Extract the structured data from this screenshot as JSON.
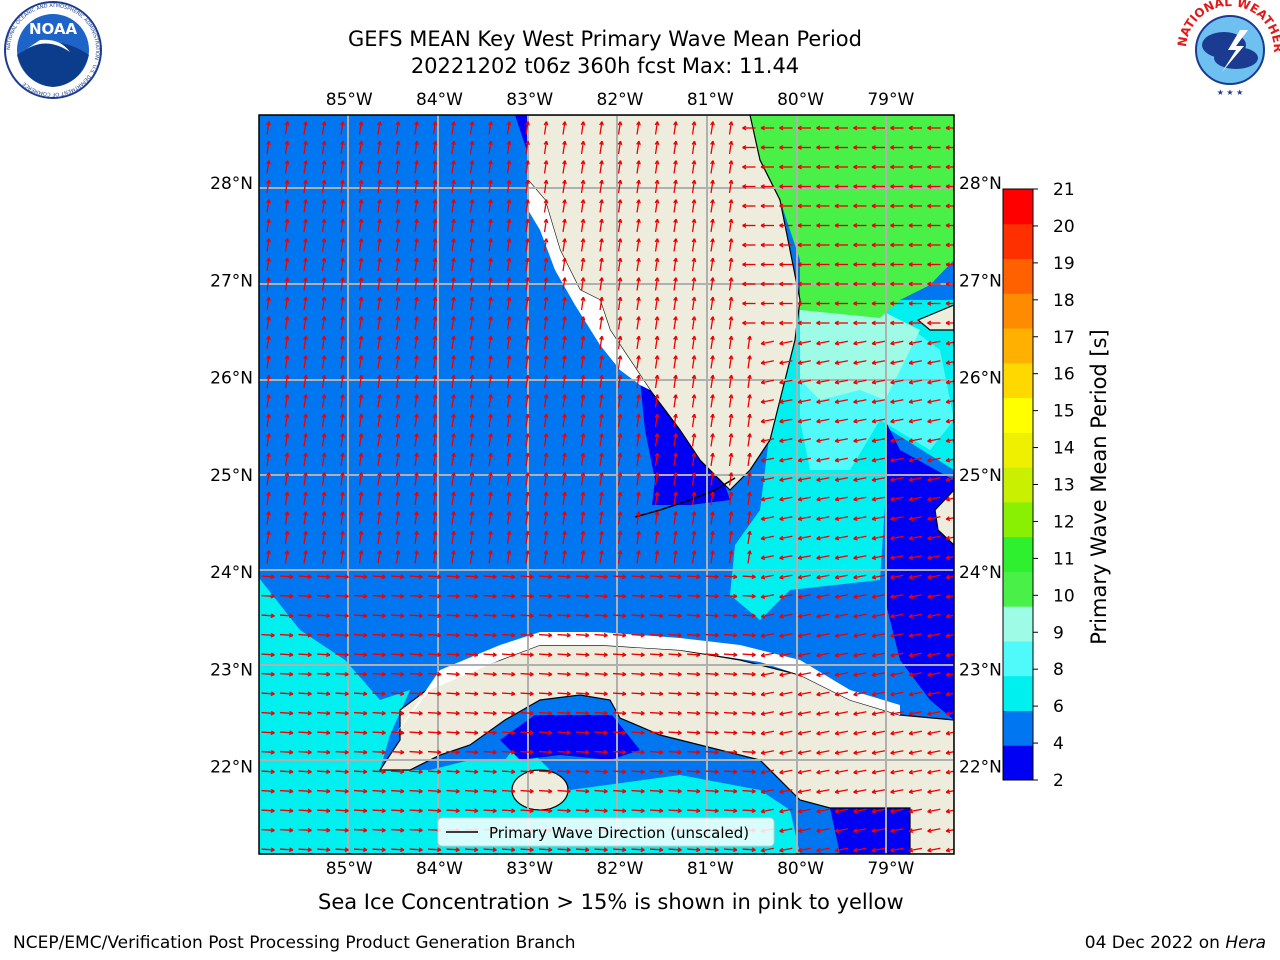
{
  "header": {
    "title_line1": "GEFS MEAN Key West Primary Wave Mean Period",
    "title_line2": "20221202 t06z 360h fcst   Max: 11.44",
    "noaa_logo_text": "NOAA",
    "noaa_ring_text": "NATIONAL OCEANIC AND ATMOSPHERIC ADMINISTRATION · U.S. DEPARTMENT OF COMMERCE",
    "nws_ring_text": "NATIONAL WEATHER SERVICE"
  },
  "map": {
    "lon_labels": [
      "85°W",
      "84°W",
      "83°W",
      "82°W",
      "81°W",
      "80°W",
      "79°W"
    ],
    "lon_values": [
      -85,
      -84,
      -83,
      -82,
      -81,
      -80,
      -79
    ],
    "lat_labels": [
      "28°N",
      "27°N",
      "26°N",
      "25°N",
      "24°N",
      "23°N",
      "22°N"
    ],
    "lat_values": [
      28,
      27,
      26,
      25,
      24,
      23,
      22
    ],
    "lon_range": [
      -86,
      -78.3
    ],
    "lat_range": [
      21.1,
      28.7
    ],
    "legend_label": "Primary Wave Direction (unscaled)",
    "colors": {
      "land": "#eeecdc",
      "c2_4": "#0000f4",
      "c4_6": "#0077f0",
      "c6_8": "#00f0f0",
      "c8_9": "#50fafa",
      "c9_10": "#9efbe6",
      "c10_11": "#48f048",
      "arrow": "#ee0000",
      "grid": "#b0b0b0"
    }
  },
  "colorbar": {
    "label": "Primary Wave Mean Period [s]",
    "ticks": [
      "21",
      "20",
      "19",
      "18",
      "17",
      "16",
      "15",
      "14",
      "13",
      "12",
      "11",
      "10",
      "9",
      "8",
      "6",
      "4",
      "2"
    ],
    "colors": [
      "#0000f4",
      "#0077f0",
      "#00f0f0",
      "#50fafa",
      "#9efbe6",
      "#48f048",
      "#2ef02e",
      "#88f000",
      "#c8f000",
      "#eef000",
      "#ffff00",
      "#ffd800",
      "#ffb000",
      "#ff8c00",
      "#ff6000",
      "#ff3000",
      "#ff0000"
    ]
  },
  "footer": {
    "subtitle": "Sea Ice Concentration > 15% is shown in pink to yellow",
    "left": "NCEP/EMC/Verification Post Processing Product Generation Branch",
    "right_date": "04 Dec 2022 on ",
    "right_host": "Hera"
  }
}
